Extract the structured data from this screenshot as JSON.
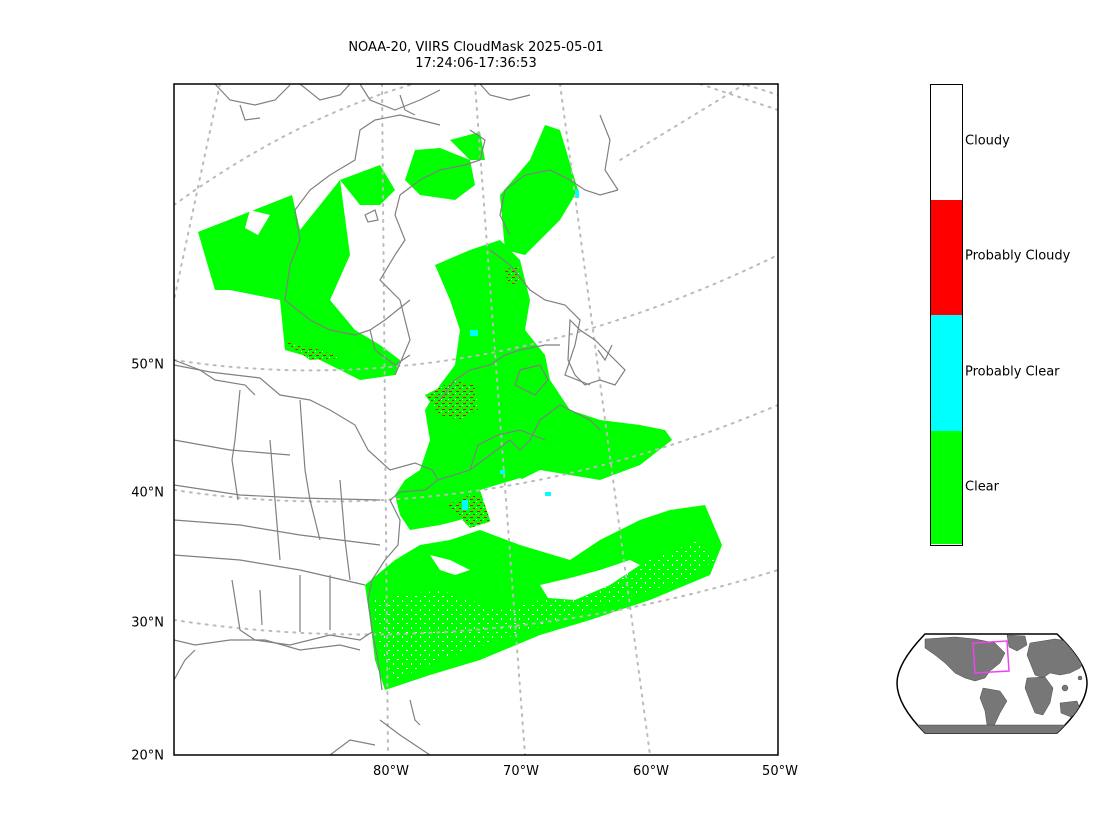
{
  "title": {
    "line1": "NOAA-20, VIIRS CloudMask 2025-05-01",
    "line2": "17:24:06-17:36:53"
  },
  "lat_labels": [
    "50°N",
    "40°N",
    "30°N",
    "20°N"
  ],
  "lon_labels": [
    "80°W",
    "70°W",
    "60°W",
    "50°W"
  ],
  "legend": {
    "categories": [
      {
        "label": "Cloudy",
        "color": "#ffffff"
      },
      {
        "label": "Probably Cloudy",
        "color": "#ff0000"
      },
      {
        "label": "Probably Clear",
        "color": "#00ffff"
      },
      {
        "label": "Clear",
        "color": "#00ff00"
      }
    ]
  },
  "colors": {
    "clear": "#00ff00",
    "probably_clear": "#00ffff",
    "probably_cloudy": "#ff0000",
    "cloudy": "#ffffff",
    "coastline": "#808080",
    "graticule": "#bbbbbb",
    "inset_land": "#777777",
    "inset_box": "#ee44ee"
  }
}
